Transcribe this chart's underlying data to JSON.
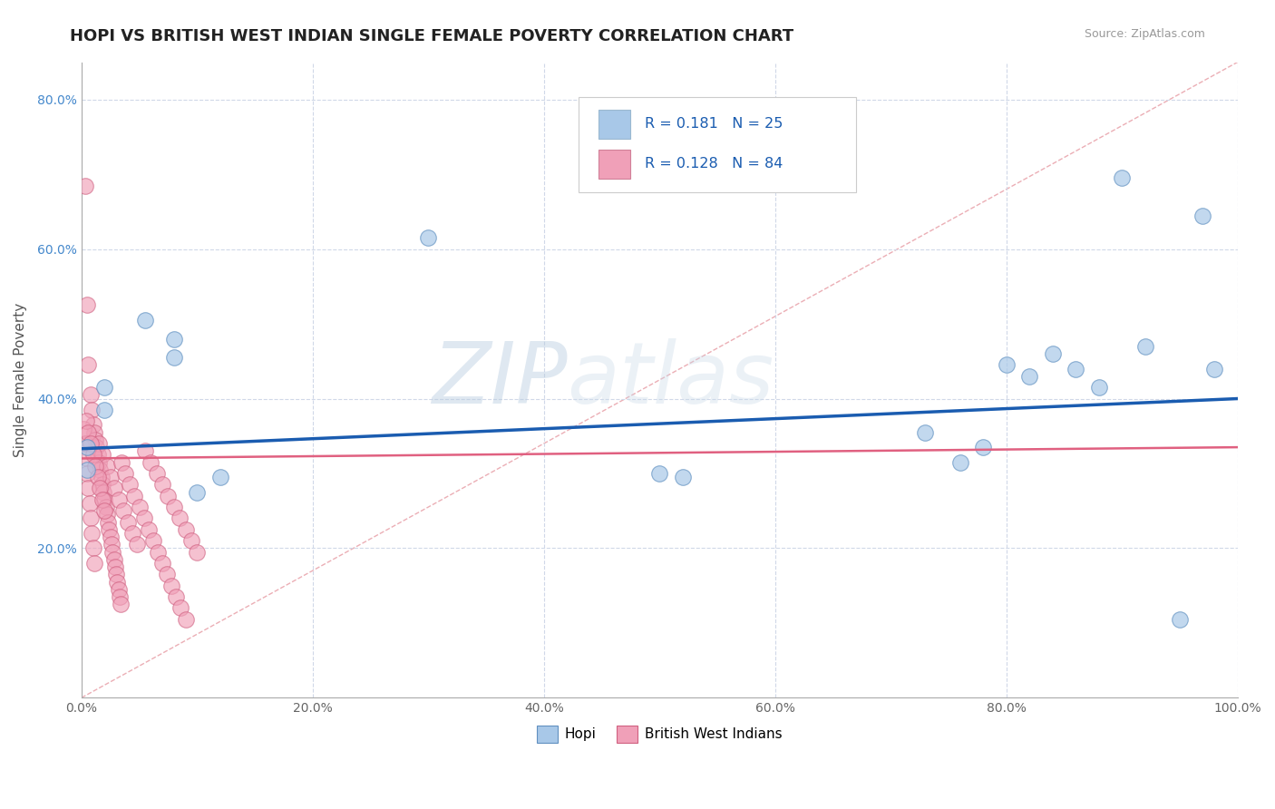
{
  "title": "HOPI VS BRITISH WEST INDIAN SINGLE FEMALE POVERTY CORRELATION CHART",
  "source": "Source: ZipAtlas.com",
  "ylabel": "Single Female Poverty",
  "xlim": [
    0,
    1.0
  ],
  "ylim": [
    0,
    0.85
  ],
  "xticks": [
    0.0,
    0.2,
    0.4,
    0.6,
    0.8,
    1.0
  ],
  "xtick_labels": [
    "0.0%",
    "20.0%",
    "40.0%",
    "60.0%",
    "80.0%",
    "100.0%"
  ],
  "yticks": [
    0.2,
    0.4,
    0.6,
    0.8
  ],
  "ytick_labels": [
    "20.0%",
    "40.0%",
    "60.0%",
    "80.0%"
  ],
  "legend_r_hopi": "0.181",
  "legend_n_hopi": "25",
  "legend_r_bwi": "0.128",
  "legend_n_bwi": "84",
  "hopi_color": "#a8c8e8",
  "bwi_color": "#f0a0b8",
  "trend_hopi_color": "#1a5cb0",
  "trend_bwi_color": "#e06080",
  "diag_color": "#e0a0a8",
  "watermark_zip": "ZIP",
  "watermark_atlas": "atlas",
  "background_color": "#ffffff",
  "grid_color": "#d0d8e8",
  "title_fontsize": 13,
  "axis_label_fontsize": 11,
  "tick_fontsize": 10,
  "hopi_points": [
    [
      0.005,
      0.335
    ],
    [
      0.005,
      0.305
    ],
    [
      0.02,
      0.415
    ],
    [
      0.02,
      0.385
    ],
    [
      0.055,
      0.505
    ],
    [
      0.08,
      0.48
    ],
    [
      0.08,
      0.455
    ],
    [
      0.1,
      0.275
    ],
    [
      0.12,
      0.295
    ],
    [
      0.3,
      0.615
    ],
    [
      0.5,
      0.3
    ],
    [
      0.52,
      0.295
    ],
    [
      0.73,
      0.355
    ],
    [
      0.76,
      0.315
    ],
    [
      0.78,
      0.335
    ],
    [
      0.8,
      0.445
    ],
    [
      0.82,
      0.43
    ],
    [
      0.84,
      0.46
    ],
    [
      0.86,
      0.44
    ],
    [
      0.88,
      0.415
    ],
    [
      0.9,
      0.695
    ],
    [
      0.92,
      0.47
    ],
    [
      0.95,
      0.105
    ],
    [
      0.97,
      0.645
    ],
    [
      0.98,
      0.44
    ]
  ],
  "bwi_points": [
    [
      0.003,
      0.685
    ],
    [
      0.005,
      0.525
    ],
    [
      0.006,
      0.445
    ],
    [
      0.008,
      0.405
    ],
    [
      0.009,
      0.385
    ],
    [
      0.01,
      0.365
    ],
    [
      0.011,
      0.355
    ],
    [
      0.012,
      0.345
    ],
    [
      0.013,
      0.335
    ],
    [
      0.014,
      0.325
    ],
    [
      0.015,
      0.315
    ],
    [
      0.016,
      0.305
    ],
    [
      0.017,
      0.295
    ],
    [
      0.018,
      0.285
    ],
    [
      0.019,
      0.275
    ],
    [
      0.02,
      0.265
    ],
    [
      0.021,
      0.255
    ],
    [
      0.022,
      0.245
    ],
    [
      0.023,
      0.235
    ],
    [
      0.024,
      0.225
    ],
    [
      0.025,
      0.215
    ],
    [
      0.026,
      0.205
    ],
    [
      0.027,
      0.195
    ],
    [
      0.028,
      0.185
    ],
    [
      0.029,
      0.175
    ],
    [
      0.03,
      0.165
    ],
    [
      0.031,
      0.155
    ],
    [
      0.032,
      0.145
    ],
    [
      0.033,
      0.135
    ],
    [
      0.034,
      0.125
    ],
    [
      0.002,
      0.36
    ],
    [
      0.003,
      0.34
    ],
    [
      0.004,
      0.32
    ],
    [
      0.005,
      0.3
    ],
    [
      0.006,
      0.28
    ],
    [
      0.007,
      0.26
    ],
    [
      0.008,
      0.24
    ],
    [
      0.009,
      0.22
    ],
    [
      0.01,
      0.2
    ],
    [
      0.011,
      0.18
    ],
    [
      0.015,
      0.34
    ],
    [
      0.018,
      0.325
    ],
    [
      0.022,
      0.31
    ],
    [
      0.025,
      0.295
    ],
    [
      0.028,
      0.28
    ],
    [
      0.032,
      0.265
    ],
    [
      0.036,
      0.25
    ],
    [
      0.04,
      0.235
    ],
    [
      0.044,
      0.22
    ],
    [
      0.048,
      0.205
    ],
    [
      0.055,
      0.33
    ],
    [
      0.06,
      0.315
    ],
    [
      0.065,
      0.3
    ],
    [
      0.07,
      0.285
    ],
    [
      0.075,
      0.27
    ],
    [
      0.08,
      0.255
    ],
    [
      0.085,
      0.24
    ],
    [
      0.09,
      0.225
    ],
    [
      0.095,
      0.21
    ],
    [
      0.1,
      0.195
    ],
    [
      0.035,
      0.315
    ],
    [
      0.038,
      0.3
    ],
    [
      0.042,
      0.285
    ],
    [
      0.046,
      0.27
    ],
    [
      0.05,
      0.255
    ],
    [
      0.054,
      0.24
    ],
    [
      0.058,
      0.225
    ],
    [
      0.062,
      0.21
    ],
    [
      0.066,
      0.195
    ],
    [
      0.07,
      0.18
    ],
    [
      0.074,
      0.165
    ],
    [
      0.078,
      0.15
    ],
    [
      0.082,
      0.135
    ],
    [
      0.086,
      0.12
    ],
    [
      0.09,
      0.105
    ],
    [
      0.004,
      0.37
    ],
    [
      0.006,
      0.355
    ],
    [
      0.008,
      0.34
    ],
    [
      0.01,
      0.325
    ],
    [
      0.012,
      0.31
    ],
    [
      0.014,
      0.295
    ],
    [
      0.016,
      0.28
    ],
    [
      0.018,
      0.265
    ],
    [
      0.02,
      0.25
    ]
  ]
}
